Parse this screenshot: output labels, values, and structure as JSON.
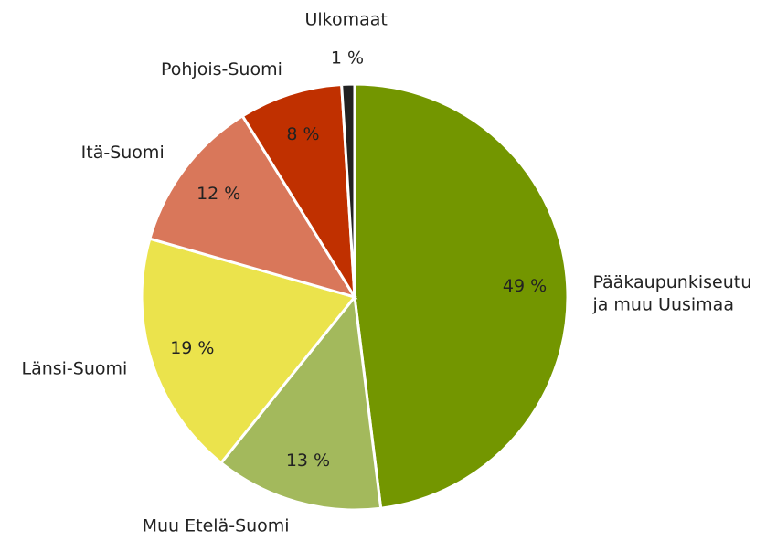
{
  "chart_data": {
    "type": "pie",
    "categories": [
      "Pääkaupunkiseutu ja muu Uusimaa",
      "Muu Etelä-Suomi",
      "Länsi-Suomi",
      "Itä-Suomi",
      "Pohjois-Suomi",
      "Ulkomaat"
    ],
    "values": [
      49,
      13,
      19,
      12,
      8,
      1
    ],
    "value_labels": [
      "49 %",
      "13 %",
      "19 %",
      "12 %",
      "8 %",
      "1 %"
    ],
    "colors": [
      "#739600",
      "#a3b95c",
      "#ebe34c",
      "#d9775a",
      "#c03000",
      "#222222"
    ]
  }
}
